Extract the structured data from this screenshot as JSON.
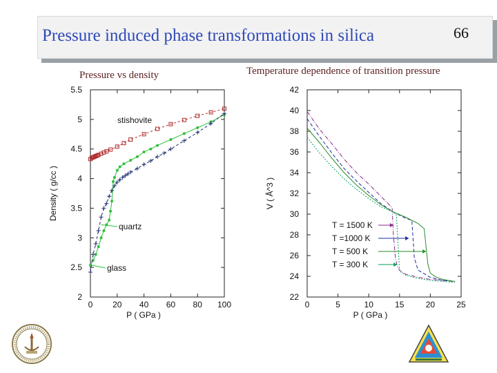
{
  "slide": {
    "title": "Pressure induced phase transformations in silica",
    "number": "66"
  },
  "captions": {
    "left": "Pressure vs density",
    "right": "Temperature dependence of transition pressure"
  },
  "colors": {
    "title_text": "#2e49b8",
    "caption_text": "#5a1f1f",
    "stishovite": "#b02a2a",
    "green": "#2fbf3a",
    "navy": "#1c2a6b",
    "T1500": "#8a2a8a",
    "T1000": "#1a2a9a",
    "T500": "#2a8a2a",
    "T300": "#00a35a"
  },
  "logos": [
    "institute-seal-icon",
    "triangle-emblem-icon"
  ],
  "chart_data": [
    {
      "type": "line",
      "title": "",
      "xlabel": "P ( GPa )",
      "ylabel": "Density ( g/cc )",
      "xlim": [
        0,
        100
      ],
      "ylim": [
        2,
        5.5
      ],
      "xticks": [
        "0",
        "20",
        "40",
        "60",
        "80",
        "100"
      ],
      "yticks": [
        "2",
        "2.5",
        "3",
        "3.5",
        "4",
        "4.5",
        "5",
        "5.5"
      ],
      "annotations": [
        "stishovite",
        "quartz",
        "glass"
      ],
      "series": [
        {
          "marker": "square",
          "color": "stishovite",
          "dash": "3,3",
          "x": [
            0,
            1,
            2,
            3,
            4,
            5,
            6,
            8,
            10,
            12,
            15,
            20,
            25,
            30,
            40,
            50,
            60,
            70,
            80,
            90,
            100
          ],
          "y": [
            4.33,
            4.35,
            4.36,
            4.37,
            4.38,
            4.39,
            4.4,
            4.42,
            4.44,
            4.46,
            4.49,
            4.54,
            4.6,
            4.66,
            4.75,
            4.84,
            4.92,
            4.99,
            5.06,
            5.12,
            5.18
          ]
        },
        {
          "marker": "circle",
          "color": "green",
          "dash": "none",
          "x": [
            0,
            2,
            4,
            6,
            8,
            10,
            12,
            14,
            15,
            16,
            17,
            18,
            20,
            22,
            25,
            30,
            35,
            40,
            45,
            50,
            60,
            70,
            80,
            90,
            100
          ],
          "y": [
            2.54,
            2.62,
            2.72,
            2.85,
            3.0,
            3.12,
            3.22,
            3.3,
            3.45,
            3.62,
            3.95,
            4.02,
            4.14,
            4.2,
            4.25,
            4.31,
            4.37,
            4.45,
            4.5,
            4.56,
            4.66,
            4.76,
            4.86,
            4.96,
            5.08
          ]
        },
        {
          "marker": "plus",
          "color": "navy",
          "dash": "4,3",
          "x": [
            0,
            2,
            4,
            6,
            8,
            10,
            12,
            14,
            16,
            18,
            20,
            22,
            24,
            26,
            28,
            30,
            35,
            40,
            45,
            50,
            55,
            60,
            70,
            80,
            90,
            100
          ],
          "y": [
            2.42,
            2.72,
            2.9,
            3.12,
            3.35,
            3.5,
            3.58,
            3.7,
            3.8,
            3.88,
            3.94,
            3.98,
            4.02,
            4.05,
            4.08,
            4.11,
            4.17,
            4.24,
            4.3,
            4.37,
            4.43,
            4.5,
            4.64,
            4.78,
            4.93,
            5.1
          ]
        }
      ]
    },
    {
      "type": "line",
      "title": "",
      "xlabel": "P ( GPa )",
      "ylabel": "V ( Å^3 )",
      "xlim": [
        0,
        25
      ],
      "ylim": [
        22,
        42
      ],
      "xticks": [
        "0",
        "5",
        "10",
        "15",
        "20",
        "25"
      ],
      "yticks": [
        "22",
        "24",
        "26",
        "28",
        "30",
        "32",
        "34",
        "36",
        "38",
        "40",
        "42"
      ],
      "legend_position": "center-left",
      "series": [
        {
          "name": "T = 1500 K",
          "color": "T1500",
          "dash": "6,2,1,2",
          "x": [
            0,
            2,
            4,
            6,
            8,
            10,
            12,
            13,
            13.8,
            14,
            14.3,
            14.6,
            15,
            16,
            18,
            20,
            22,
            24
          ],
          "y": [
            39.9,
            38.2,
            36.8,
            35.3,
            34.0,
            32.9,
            31.7,
            31.1,
            30.6,
            28.0,
            26.0,
            25.0,
            24.6,
            24.2,
            23.9,
            23.7,
            23.6,
            23.5
          ]
        },
        {
          "name": "T =1000 K",
          "color": "T1000",
          "dash": "5,3",
          "x": [
            0,
            2,
            4,
            6,
            8,
            10,
            12,
            14,
            15,
            16,
            16.5,
            17,
            17.4,
            18,
            20,
            22,
            24
          ],
          "y": [
            39.2,
            37.5,
            35.9,
            34.4,
            33.2,
            32.1,
            31.0,
            30.2,
            29.9,
            29.6,
            29.5,
            29.4,
            25.8,
            24.6,
            23.9,
            23.6,
            23.5
          ]
        },
        {
          "name": "T = 500 K",
          "color": "T500",
          "dash": "none",
          "x": [
            0,
            2,
            4,
            6,
            8,
            10,
            12,
            14,
            16,
            18,
            19,
            19.6,
            20,
            21,
            22,
            24
          ],
          "y": [
            38.3,
            36.9,
            35.4,
            34.0,
            32.8,
            31.8,
            30.9,
            30.2,
            29.7,
            29.1,
            28.6,
            25.2,
            24.3,
            23.9,
            23.7,
            23.5
          ]
        },
        {
          "name": "T = 300 K",
          "color": "T300",
          "dash": "2,2",
          "x": [
            0,
            2,
            4,
            6,
            8,
            10,
            12,
            14,
            14.5,
            15,
            16,
            18,
            20,
            22,
            24
          ],
          "y": [
            37.4,
            35.9,
            34.6,
            33.4,
            32.4,
            31.5,
            30.7,
            30.2,
            29.9,
            24.5,
            24.1,
            23.8,
            23.6,
            23.5,
            23.4
          ]
        }
      ]
    }
  ]
}
